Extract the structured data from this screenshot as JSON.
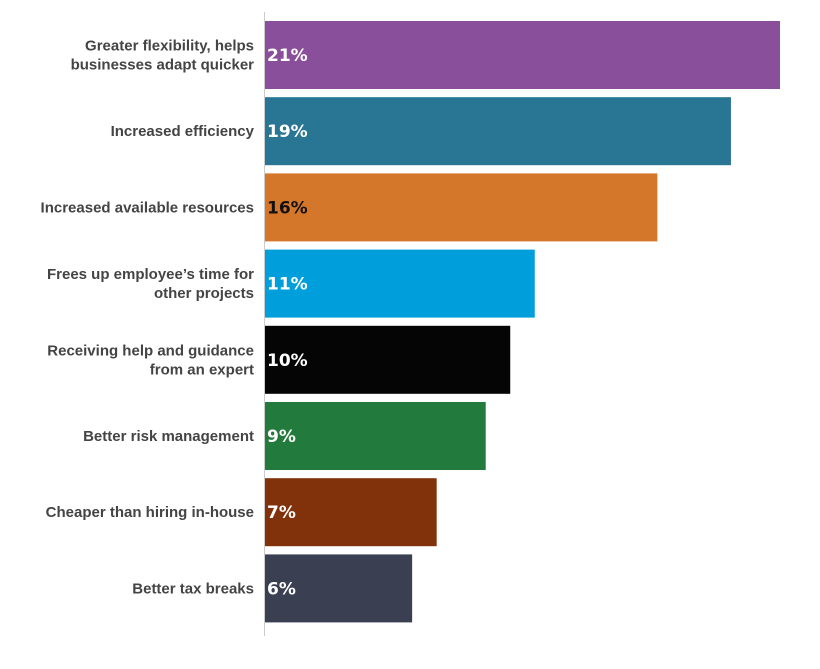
{
  "chart_data": {
    "type": "bar",
    "orientation": "horizontal",
    "categories": [
      [
        "Greater flexibility, helps",
        "businesses adapt quicker"
      ],
      [
        "Increased efficiency"
      ],
      [
        "Increased available resources"
      ],
      [
        "Frees up employee’s time for",
        "other projects"
      ],
      [
        "Receiving help and guidance",
        "from an expert"
      ],
      [
        "Better risk management"
      ],
      [
        "Cheaper than hiring in-house"
      ],
      [
        "Better tax breaks"
      ]
    ],
    "values": [
      21,
      19,
      16,
      11,
      10,
      9,
      7,
      6
    ],
    "data_labels": [
      "21%",
      "19%",
      "16%",
      "11%",
      "10%",
      "9%",
      "7%",
      "6%"
    ],
    "colors": [
      "#8a4f9a",
      "#287594",
      "#d4772a",
      "#009fdc",
      "#050505",
      "#237a3d",
      "#82320a",
      "#3a3f52"
    ],
    "label_colors": [
      "#ffffff",
      "#ffffff",
      "#111111",
      "#ffffff",
      "#ffffff",
      "#ffffff",
      "#ffffff",
      "#ffffff"
    ],
    "xlim": [
      0,
      21
    ],
    "grid": false,
    "legend": "none"
  }
}
